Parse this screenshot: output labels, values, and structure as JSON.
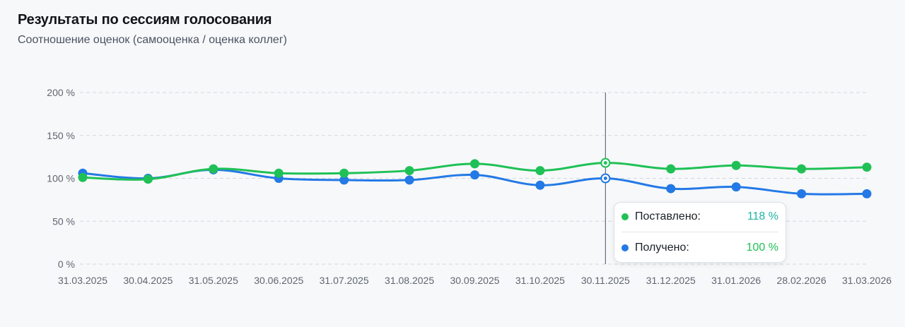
{
  "header": {
    "title": "Результаты по сессиям голосования",
    "subtitle": "Соотношение оценок (самооценка / оценка коллег)"
  },
  "chart_data": {
    "type": "line",
    "x": [
      "31.03.2025",
      "30.04.2025",
      "31.05.2025",
      "30.06.2025",
      "31.07.2025",
      "31.08.2025",
      "30.09.2025",
      "31.10.2025",
      "30.11.2025",
      "31.12.2025",
      "31.01.2026",
      "28.02.2026",
      "31.03.2026"
    ],
    "series": [
      {
        "name": "Поставлено:",
        "color": "#1fc156",
        "values": [
          101,
          99,
          111,
          106,
          106,
          109,
          117,
          109,
          118,
          111,
          115,
          111,
          113
        ]
      },
      {
        "name": "Получено:",
        "color": "#2379e6",
        "values": [
          106,
          100,
          110,
          100,
          98,
          98,
          104,
          92,
          100,
          88,
          90,
          82,
          82
        ]
      }
    ],
    "y_ticks": [
      "200 %",
      "150 %",
      "100 %",
      "50 %",
      "0 %"
    ],
    "ylim": [
      0,
      200
    ],
    "grid": true,
    "smooth": true,
    "hover_index": 8
  },
  "tooltip": {
    "rows": [
      {
        "label": "Поставлено:",
        "value": "118 %",
        "dot_color": "#1fc156",
        "value_color": "#1fb5a0"
      },
      {
        "label": "Получено:",
        "value": "100 %",
        "dot_color": "#2379e6",
        "value_color": "#1fc156"
      }
    ]
  }
}
